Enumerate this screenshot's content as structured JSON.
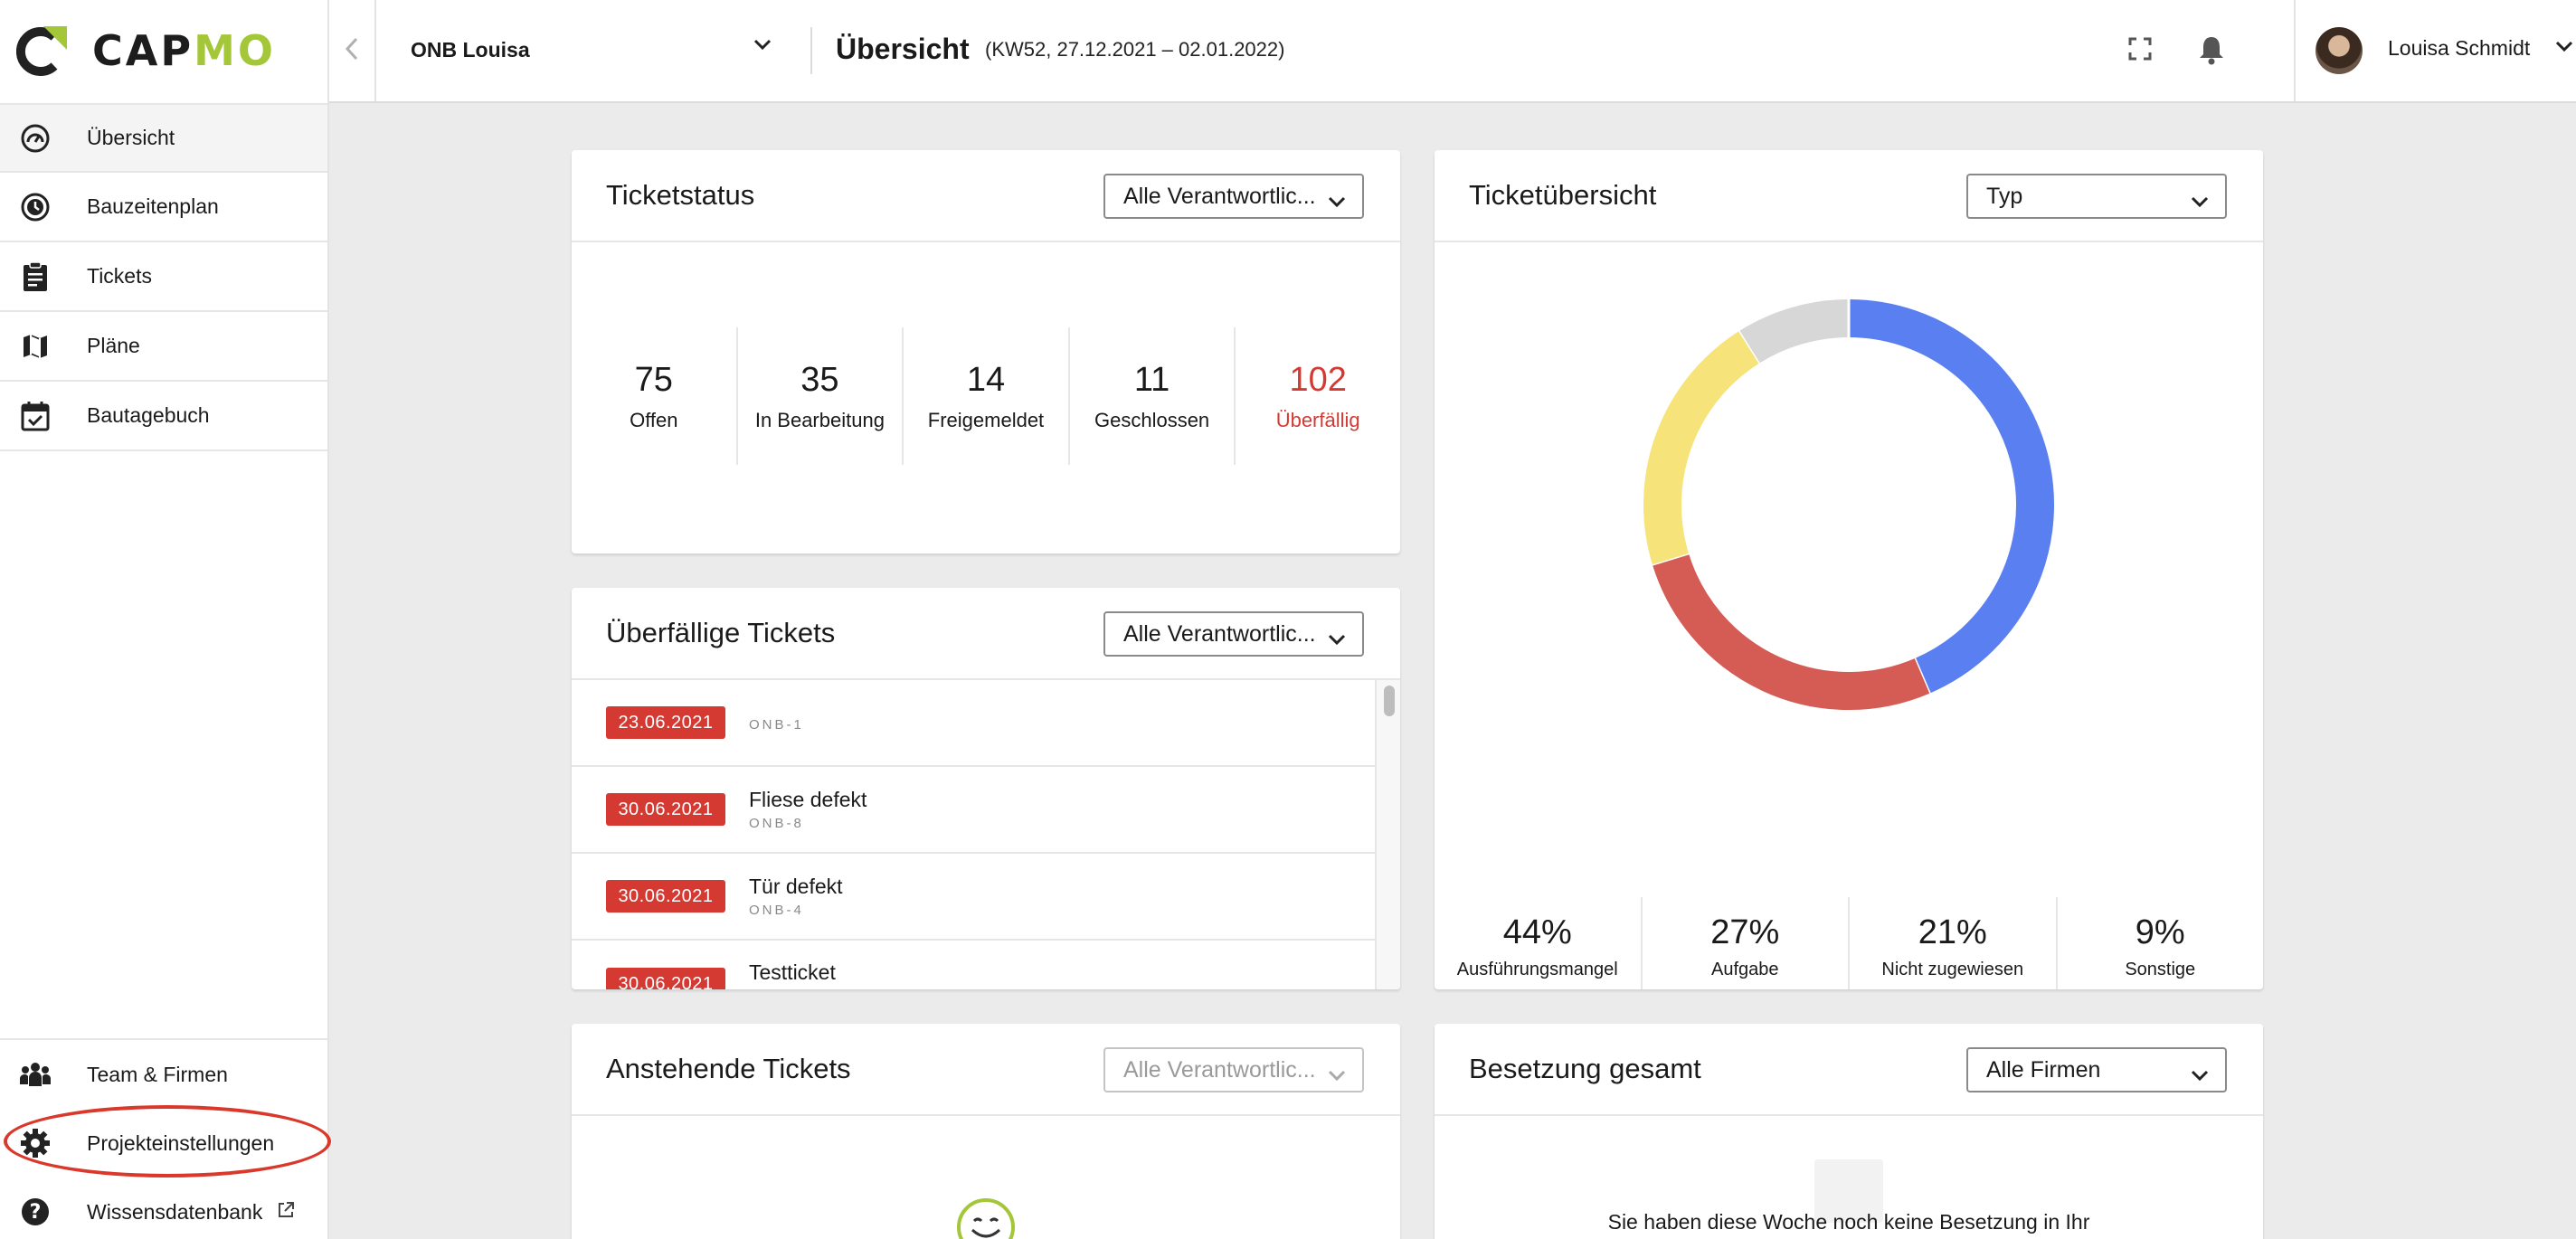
{
  "brand": {
    "name_a": "CAP",
    "name_b": "MO"
  },
  "sidebar": {
    "items": [
      {
        "label": "Übersicht",
        "icon": "speedometer-icon"
      },
      {
        "label": "Bauzeitenplan",
        "icon": "clock-icon"
      },
      {
        "label": "Tickets",
        "icon": "clipboard-icon"
      },
      {
        "label": "Pläne",
        "icon": "map-icon"
      },
      {
        "label": "Bautagebuch",
        "icon": "calendar-check-icon"
      }
    ],
    "bottom_items": [
      {
        "label": "Team & Firmen",
        "icon": "team-icon"
      },
      {
        "label": "Projekteinstellungen",
        "icon": "gear-icon"
      },
      {
        "label": "Wissensdatenbank",
        "icon": "help-icon"
      }
    ]
  },
  "topbar": {
    "project": "ONB Louisa",
    "title": "Übersicht",
    "subtitle": "(KW52, 27.12.2021 – 02.01.2022)",
    "user": "Louisa Schmidt"
  },
  "ticketstatus": {
    "title": "Ticketstatus",
    "filter": "Alle Verantwortlic...",
    "stats": [
      {
        "value": "75",
        "label": "Offen"
      },
      {
        "value": "35",
        "label": "In Bearbeitung"
      },
      {
        "value": "14",
        "label": "Freigemeldet"
      },
      {
        "value": "11",
        "label": "Geschlossen"
      },
      {
        "value": "102",
        "label": "Überfällig"
      }
    ]
  },
  "overdue": {
    "title": "Überfällige Tickets",
    "filter": "Alle Verantwortlic...",
    "rows": [
      {
        "date": "23.06.2021",
        "title": "",
        "code": "ONB-1"
      },
      {
        "date": "30.06.2021",
        "title": "Fliese defekt",
        "code": "ONB-8"
      },
      {
        "date": "30.06.2021",
        "title": "Tür defekt",
        "code": "ONB-4"
      },
      {
        "date": "30.06.2021",
        "title": "Testticket",
        "code": ""
      }
    ]
  },
  "overview": {
    "title": "Ticketübersicht",
    "filter": "Typ",
    "colors": {
      "blue": "#5a7ff0",
      "red": "#d45c55",
      "yellow": "#f6e47a",
      "grey": "#d7d7d7"
    },
    "legend": [
      {
        "pct": "44%",
        "name": "Ausführungsmangel"
      },
      {
        "pct": "27%",
        "name": "Aufgabe"
      },
      {
        "pct": "21%",
        "name": "Nicht zugewiesen"
      },
      {
        "pct": "9%",
        "name": "Sonstige"
      }
    ]
  },
  "chart_data": {
    "type": "pie",
    "categories": [
      "Ausführungsmangel",
      "Aufgabe",
      "Nicht zugewiesen",
      "Sonstige"
    ],
    "values": [
      44,
      27,
      21,
      9
    ],
    "colors": [
      "#5a7ff0",
      "#d45c55",
      "#f6e47a",
      "#d7d7d7"
    ],
    "title": "Ticketübersicht"
  },
  "upcoming": {
    "title": "Anstehende Tickets",
    "filter": "Alle Verantwortlic..."
  },
  "staffing": {
    "title": "Besetzung gesamt",
    "filter": "Alle Firmen",
    "empty": "Sie haben diese Woche noch keine Besetzung in Ihr"
  }
}
